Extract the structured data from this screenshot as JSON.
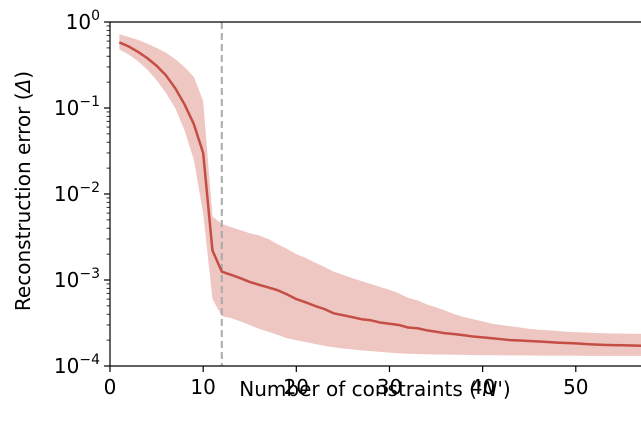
{
  "chart_data": {
    "type": "line",
    "xlabel_prefix": "Number of constraints ('",
    "xlabel_var": "N",
    "xlabel_suffix": "')",
    "ylabel_prefix": "Reconstruction error (",
    "ylabel_var": "Δ",
    "ylabel_suffix": ")",
    "y_scale": "log",
    "xlim": [
      0,
      57
    ],
    "ylim": [
      0.0001,
      1
    ],
    "x_ticks": [
      0,
      10,
      20,
      30,
      40,
      50
    ],
    "y_ticks": [
      {
        "value": 1,
        "base": "10",
        "exp": "0"
      },
      {
        "value": 0.1,
        "base": "10",
        "exp": "−1"
      },
      {
        "value": 0.01,
        "base": "10",
        "exp": "−2"
      },
      {
        "value": 0.001,
        "base": "10",
        "exp": "−3"
      },
      {
        "value": 0.0001,
        "base": "10",
        "exp": "−4"
      }
    ],
    "reference_line_x": 12,
    "colors": {
      "line": "#c44e44",
      "band": "#eec6c2",
      "reference": "#aaaaaa"
    },
    "series": [
      {
        "x": [
          1,
          2,
          3,
          4,
          5,
          6,
          7,
          8,
          9,
          10,
          11,
          12,
          13,
          14,
          15,
          16,
          17,
          18,
          19,
          20,
          21,
          22,
          23,
          24,
          25,
          26,
          27,
          28,
          29,
          30,
          31,
          32,
          33,
          34,
          35,
          36,
          37,
          38,
          39,
          40,
          41,
          42,
          43,
          44,
          45,
          46,
          47,
          48,
          49,
          50,
          51,
          52,
          53,
          54,
          55,
          56,
          57
        ],
        "y": [
          0.58,
          0.52,
          0.45,
          0.38,
          0.31,
          0.24,
          0.17,
          0.11,
          0.065,
          0.03,
          0.0022,
          0.00125,
          0.00115,
          0.00105,
          0.00095,
          0.00088,
          0.00082,
          0.00076,
          0.00068,
          0.0006,
          0.00055,
          0.0005,
          0.00046,
          0.00041,
          0.00039,
          0.00037,
          0.00035,
          0.00034,
          0.00032,
          0.00031,
          0.0003,
          0.00028,
          0.000275,
          0.00026,
          0.00025,
          0.00024,
          0.000235,
          0.000228,
          0.00022,
          0.000215,
          0.00021,
          0.000205,
          0.0002,
          0.000198,
          0.000195,
          0.000193,
          0.00019,
          0.000187,
          0.000185,
          0.000183,
          0.00018,
          0.000178,
          0.000176,
          0.000175,
          0.000174,
          0.000173,
          0.000172
        ],
        "lower": [
          0.48,
          0.42,
          0.35,
          0.28,
          0.21,
          0.15,
          0.1,
          0.055,
          0.025,
          0.006,
          0.0006,
          0.00038,
          0.00036,
          0.00033,
          0.0003,
          0.00027,
          0.00025,
          0.00023,
          0.00021,
          0.0002,
          0.00019,
          0.00018,
          0.000172,
          0.000165,
          0.00016,
          0.000156,
          0.000152,
          0.000149,
          0.000146,
          0.000143,
          0.00014,
          0.000139,
          0.000138,
          0.000137,
          0.000136,
          0.000136,
          0.000135,
          0.000135,
          0.000134,
          0.000134,
          0.000134,
          0.000133,
          0.000133,
          0.000133,
          0.000133,
          0.000132,
          0.000132,
          0.000132,
          0.000132,
          0.000132,
          0.000131,
          0.000131,
          0.000131,
          0.000131,
          0.000131,
          0.000131,
          0.000131
        ],
        "upper": [
          0.72,
          0.67,
          0.62,
          0.56,
          0.5,
          0.44,
          0.37,
          0.3,
          0.23,
          0.12,
          0.0055,
          0.0045,
          0.0041,
          0.0038,
          0.0035,
          0.0033,
          0.003,
          0.0026,
          0.0023,
          0.002,
          0.0018,
          0.0016,
          0.00142,
          0.00125,
          0.00115,
          0.00105,
          0.00097,
          0.0009,
          0.00083,
          0.00077,
          0.0007,
          0.00062,
          0.00058,
          0.00052,
          0.00048,
          0.00044,
          0.0004,
          0.00037,
          0.00035,
          0.00033,
          0.00031,
          0.0003,
          0.00029,
          0.00028,
          0.00027,
          0.000265,
          0.00026,
          0.000255,
          0.00025,
          0.000248,
          0.000245,
          0.000243,
          0.00024,
          0.000239,
          0.000238,
          0.000237,
          0.000236
        ]
      }
    ]
  }
}
